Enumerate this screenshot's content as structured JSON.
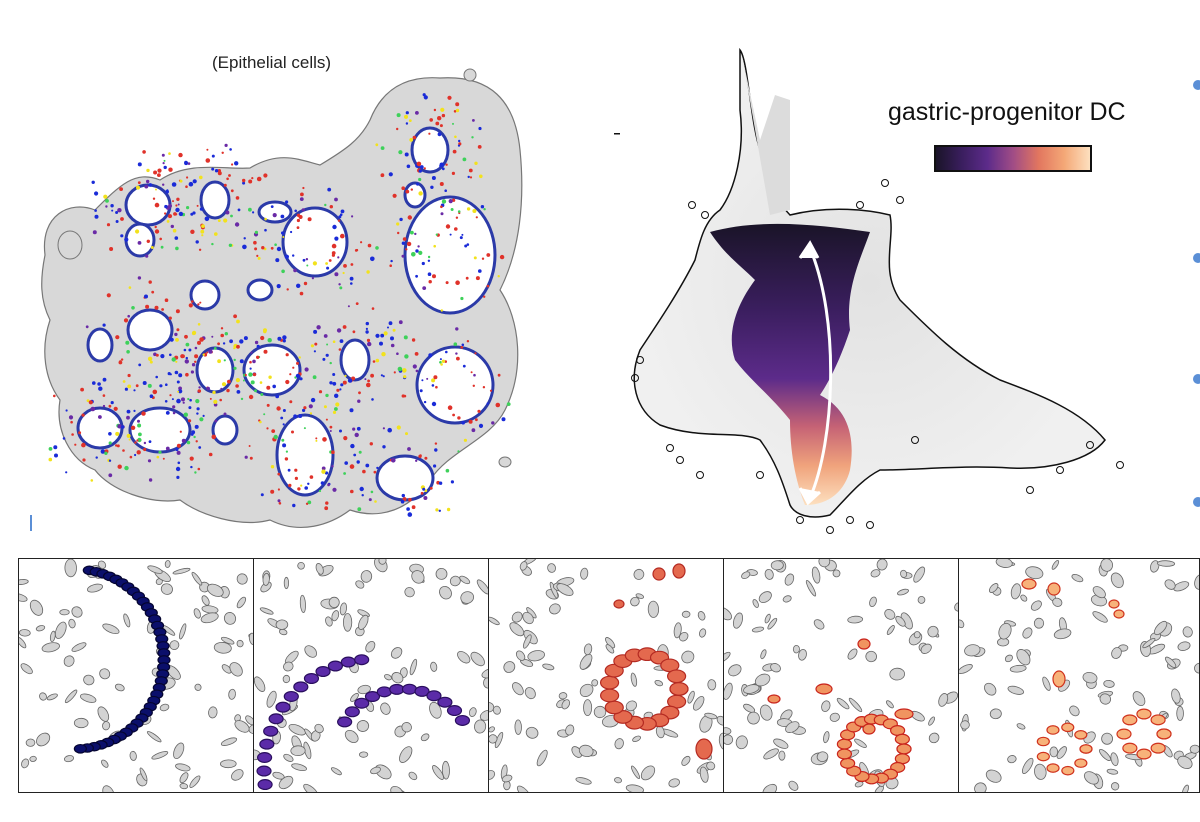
{
  "tissue_label": "(Epithelial cells)",
  "embedding_legend": {
    "title": "gastric-progenitor DC",
    "colormap": [
      "#1a1428",
      "#3a1e5e",
      "#5c2b8a",
      "#a04c86",
      "#e2765f",
      "#f4a877",
      "#fde0bf"
    ]
  },
  "colors": {
    "tissue_gray": "#d8d8d8",
    "outline": "#777777",
    "cell_gray": "#d3d3d3",
    "blue": "#1a2bd8",
    "red": "#e0322a",
    "green": "#3ed15a",
    "yellow": "#f2e21c",
    "purple": "#6a2aa6",
    "arrow": "#ffffff",
    "bullet": "#5b8fd6"
  },
  "panels": [
    {
      "name": "panel-dark-navy",
      "fill": "#0b0f6b",
      "stroke": "#050530"
    },
    {
      "name": "panel-purple",
      "fill": "#5b2ba8",
      "stroke": "#2a0f5e"
    },
    {
      "name": "panel-coral",
      "fill": "#e4694e",
      "stroke": "#b42a22"
    },
    {
      "name": "panel-orange-ring",
      "fill": "#f09460",
      "stroke": "#c9241c"
    },
    {
      "name": "panel-peach",
      "fill": "#f7b27a",
      "stroke": "#d0331e"
    }
  ]
}
